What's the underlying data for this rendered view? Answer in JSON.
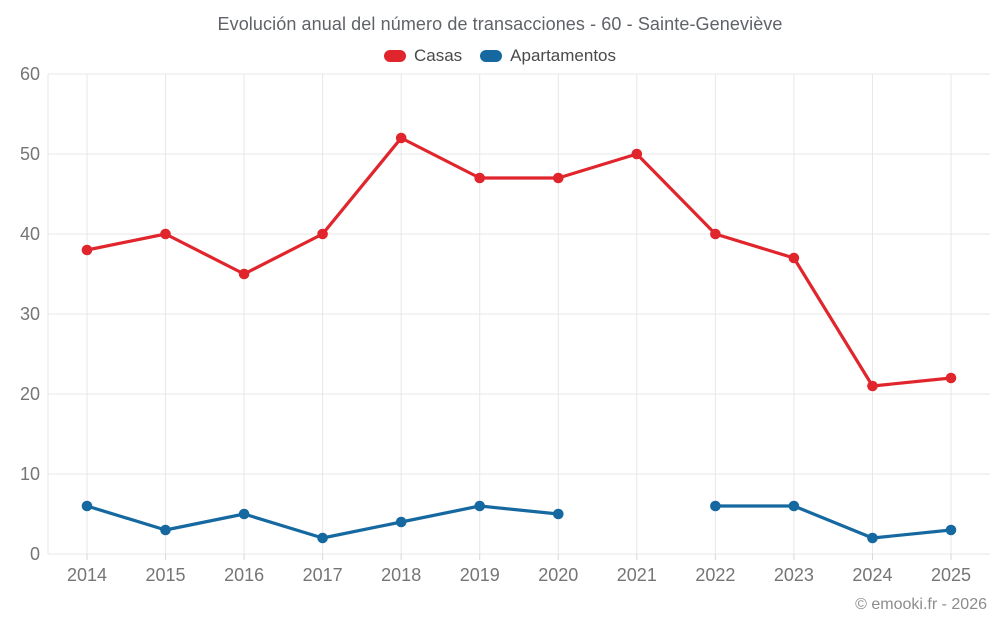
{
  "chart_data": {
    "type": "line",
    "title": "Evolución anual del número de transacciones - 60 - Sainte-Geneviève",
    "categories": [
      "2014",
      "2015",
      "2016",
      "2017",
      "2018",
      "2019",
      "2020",
      "2021",
      "2022",
      "2023",
      "2024",
      "2025"
    ],
    "series": [
      {
        "name": "Casas",
        "color": "#e0252c",
        "values": [
          38,
          40,
          35,
          40,
          52,
          47,
          47,
          50,
          40,
          37,
          21,
          22
        ]
      },
      {
        "name": "Apartamentos",
        "color": "#1569a0",
        "values": [
          6,
          3,
          5,
          2,
          4,
          6,
          5,
          null,
          6,
          6,
          2,
          3
        ]
      }
    ],
    "xlabel": "",
    "ylabel": "",
    "ylim": [
      0,
      60
    ],
    "yticks": [
      0,
      10,
      20,
      30,
      40,
      50,
      60
    ],
    "grid": true,
    "legend_position": "top",
    "watermark": "© emooki.fr - 2026"
  }
}
